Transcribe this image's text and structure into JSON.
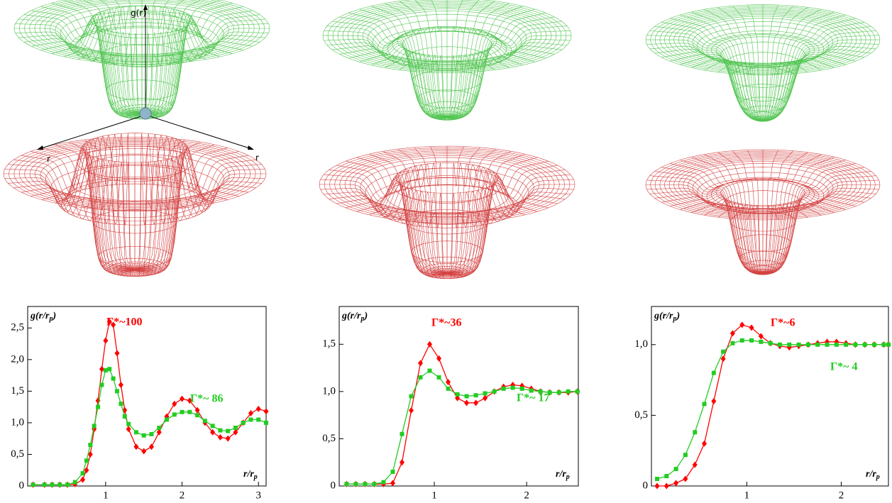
{
  "diagram": {
    "axis_labels": [
      "g(r)",
      "r",
      "r"
    ]
  },
  "chart_data": [
    {
      "type": "line",
      "ylabel": [
        "g(r/r",
        "p",
        ")"
      ],
      "xlabel": [
        "r/r",
        "p"
      ],
      "x": [
        0.05,
        0.2,
        0.3,
        0.4,
        0.5,
        0.6,
        0.7,
        0.75,
        0.8,
        0.85,
        0.9,
        0.95,
        1.0,
        1.05,
        1.1,
        1.15,
        1.2,
        1.25,
        1.3,
        1.4,
        1.5,
        1.6,
        1.7,
        1.8,
        1.9,
        2.0,
        2.1,
        2.2,
        2.3,
        2.4,
        2.5,
        2.6,
        2.7,
        2.8,
        2.9,
        3.0,
        3.1
      ],
      "series": [
        {
          "name": "Γ*~100",
          "color": "#ff0000",
          "marker": "diamond",
          "values": [
            0.02,
            0.02,
            0.02,
            0.02,
            0.02,
            0.03,
            0.1,
            0.25,
            0.5,
            0.9,
            1.35,
            1.85,
            2.3,
            2.6,
            2.55,
            2.1,
            1.6,
            1.2,
            0.9,
            0.62,
            0.55,
            0.62,
            0.85,
            1.1,
            1.3,
            1.38,
            1.35,
            1.2,
            1.0,
            0.85,
            0.77,
            0.75,
            0.85,
            1.0,
            1.15,
            1.22,
            1.18
          ]
        },
        {
          "name": "Γ*~ 86",
          "color": "#22cc22",
          "marker": "square",
          "values": [
            0.02,
            0.02,
            0.02,
            0.02,
            0.02,
            0.06,
            0.2,
            0.4,
            0.65,
            0.95,
            1.25,
            1.6,
            1.83,
            1.85,
            1.7,
            1.5,
            1.3,
            1.1,
            0.98,
            0.85,
            0.8,
            0.82,
            0.92,
            1.05,
            1.13,
            1.17,
            1.17,
            1.12,
            1.03,
            0.95,
            0.88,
            0.87,
            0.92,
            1.0,
            1.05,
            1.05,
            1.0
          ]
        }
      ],
      "xlim": [
        -0.02,
        3.1
      ],
      "ylim": [
        0,
        2.84
      ],
      "xticks": [
        1,
        2,
        3
      ],
      "yticks": [
        0,
        {
          "value": 0.5,
          "label": "0,5"
        },
        {
          "value": 1.0,
          "label": "1,0"
        },
        {
          "value": 1.5,
          "label": "1,5"
        },
        {
          "value": 2.0,
          "label": "2,0"
        },
        {
          "value": 2.5,
          "label": "2,5"
        }
      ]
    },
    {
      "type": "line",
      "ylabel": [
        "g(r/r",
        "p",
        ")"
      ],
      "xlabel": [
        "r/r",
        "p"
      ],
      "x": [
        0.05,
        0.15,
        0.25,
        0.35,
        0.45,
        0.55,
        0.65,
        0.75,
        0.85,
        0.95,
        1.05,
        1.15,
        1.25,
        1.35,
        1.45,
        1.55,
        1.65,
        1.75,
        1.85,
        1.95,
        2.05,
        2.15,
        2.25,
        2.35,
        2.45,
        2.55
      ],
      "series": [
        {
          "name": "Γ*~36",
          "color": "#ff0000",
          "marker": "diamond",
          "values": [
            0.02,
            0.02,
            0.02,
            0.02,
            0.02,
            0.03,
            0.25,
            0.8,
            1.3,
            1.5,
            1.35,
            1.1,
            0.93,
            0.88,
            0.88,
            0.93,
            1.0,
            1.05,
            1.07,
            1.06,
            1.03,
            1.0,
            0.99,
            0.99,
            0.99,
            1.0
          ]
        },
        {
          "name": "Γ*~ 17",
          "color": "#22cc22",
          "marker": "square",
          "values": [
            0.02,
            0.02,
            0.02,
            0.02,
            0.04,
            0.15,
            0.55,
            0.95,
            1.15,
            1.22,
            1.15,
            1.03,
            0.97,
            0.95,
            0.96,
            0.98,
            1.0,
            1.03,
            1.04,
            1.03,
            1.01,
            1.0,
            0.99,
            0.99,
            1.0,
            1.0
          ]
        }
      ],
      "xlim": [
        -0.03,
        2.56
      ],
      "ylim": [
        0,
        1.9
      ],
      "xticks": [
        1,
        2
      ],
      "yticks": [
        0,
        {
          "value": 0.5,
          "label": "0,5"
        },
        {
          "value": 1.0,
          "label": "1,0"
        },
        {
          "value": 1.5,
          "label": "1,5"
        }
      ]
    },
    {
      "type": "line",
      "ylabel": [
        "g(r/r",
        "p",
        ")"
      ],
      "xlabel": [
        "r/r",
        "p"
      ],
      "x": [
        0.05,
        0.15,
        0.25,
        0.35,
        0.45,
        0.55,
        0.65,
        0.75,
        0.85,
        0.95,
        1.05,
        1.15,
        1.25,
        1.35,
        1.45,
        1.55,
        1.65,
        1.75,
        1.85,
        1.95,
        2.05,
        2.15,
        2.25,
        2.35,
        2.45,
        2.5
      ],
      "series": [
        {
          "name": "Γ*~6",
          "color": "#ff0000",
          "marker": "diamond",
          "values": [
            0.0,
            0.0,
            0.02,
            0.05,
            0.15,
            0.3,
            0.6,
            0.9,
            1.08,
            1.14,
            1.12,
            1.06,
            1.01,
            0.99,
            0.98,
            0.99,
            1.0,
            1.01,
            1.02,
            1.02,
            1.01,
            1.0,
            1.0,
            1.0,
            1.0,
            1.0
          ]
        },
        {
          "name": "Γ*~ 4",
          "color": "#22cc22",
          "marker": "square",
          "values": [
            0.05,
            0.07,
            0.12,
            0.22,
            0.38,
            0.58,
            0.8,
            0.95,
            1.01,
            1.03,
            1.03,
            1.02,
            1.01,
            1.0,
            1.0,
            1.0,
            1.0,
            1.0,
            1.0,
            1.0,
            1.0,
            1.0,
            1.0,
            1.0,
            1.0,
            1.0
          ]
        }
      ],
      "xlim": [
        -0.01,
        2.5
      ],
      "ylim": [
        0,
        1.27
      ],
      "xticks": [
        1,
        2
      ],
      "yticks": [
        0,
        {
          "value": 0.5,
          "label": "0,5"
        },
        {
          "value": 1.0,
          "label": "1,0"
        }
      ]
    }
  ]
}
